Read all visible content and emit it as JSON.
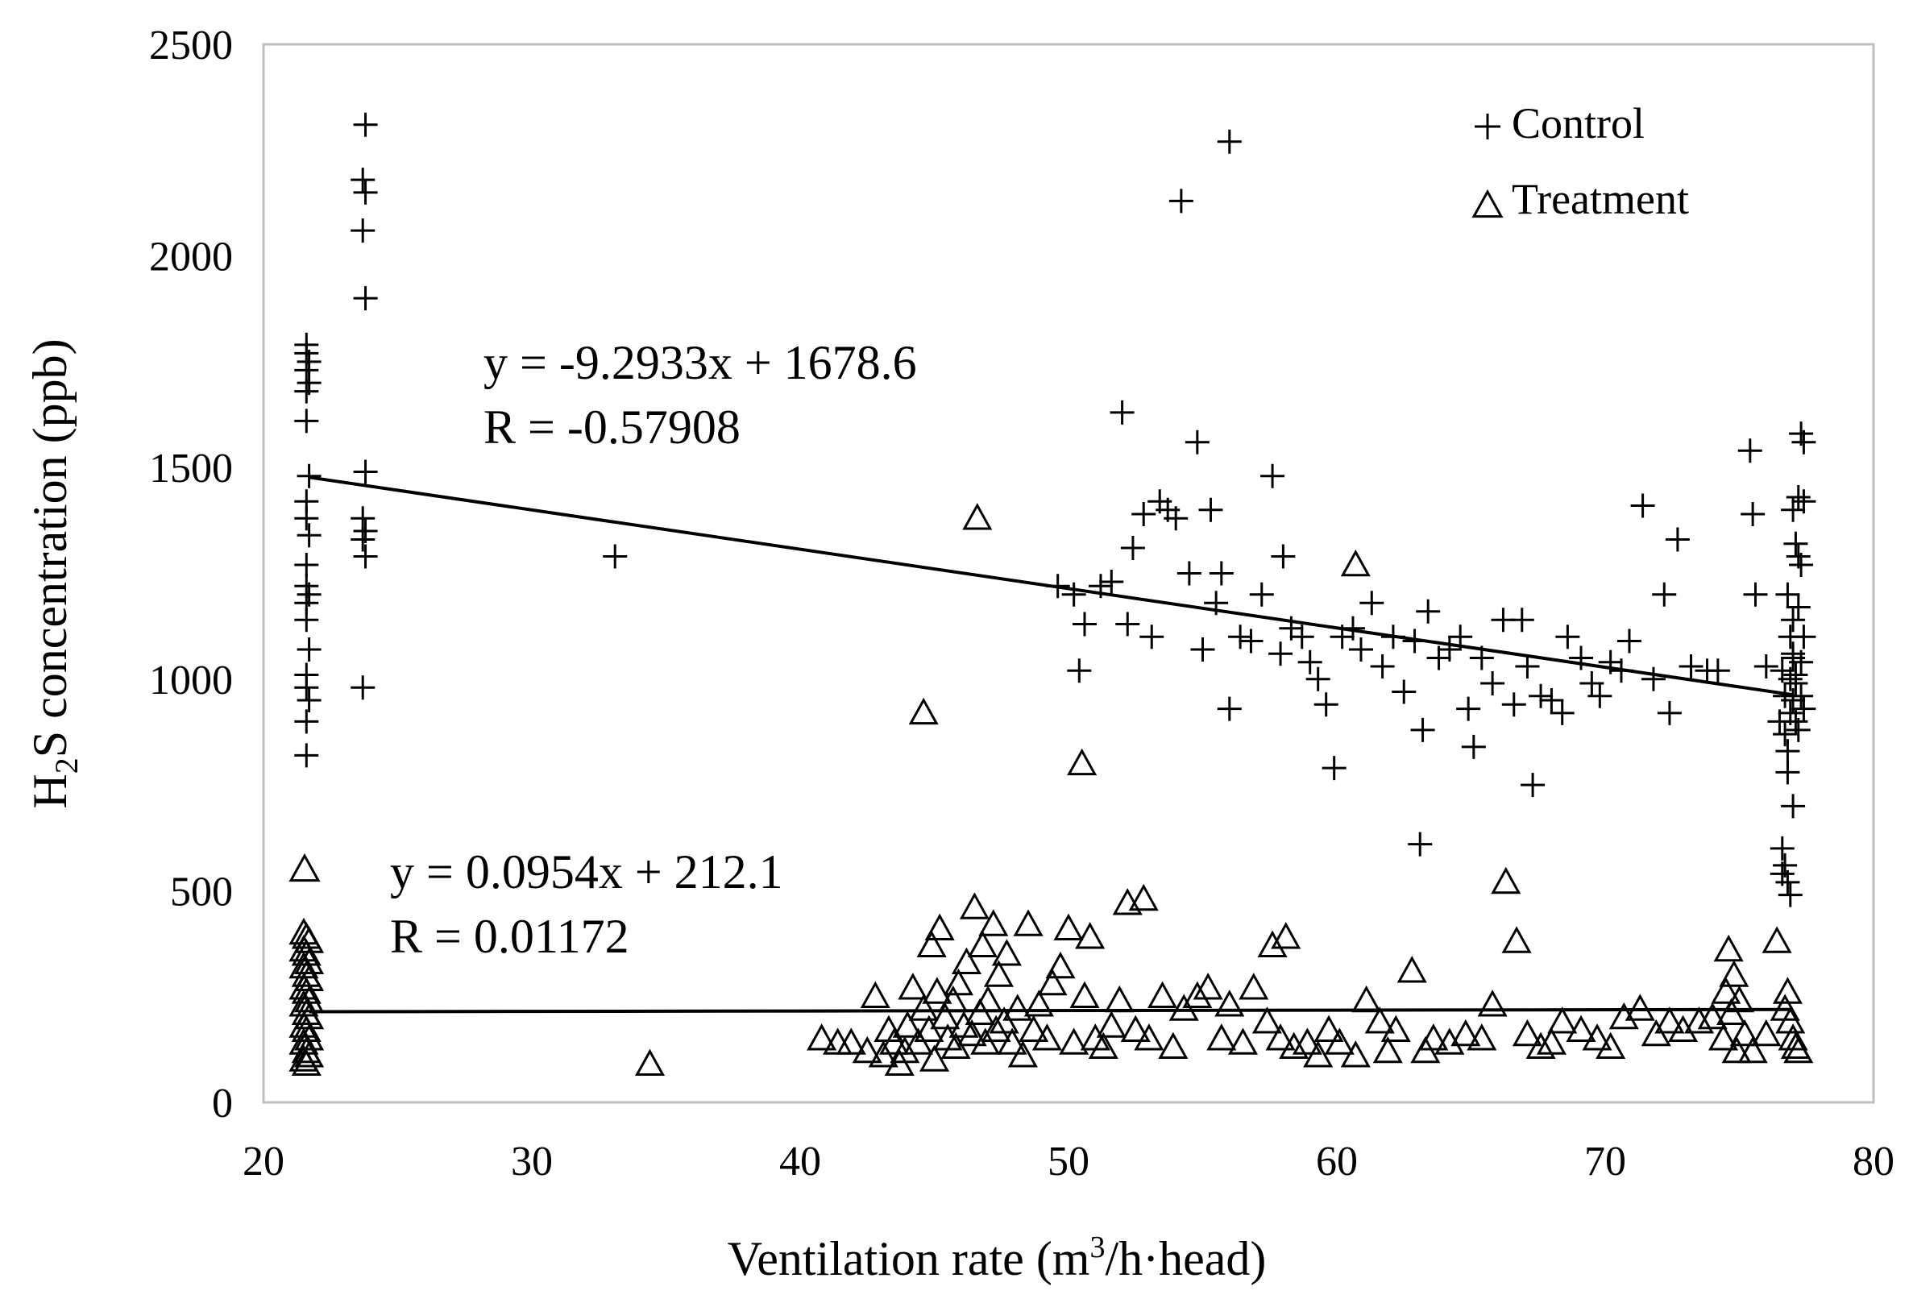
{
  "chart_data": {
    "type": "scatter",
    "title": "",
    "xlabel": {
      "pre": "Ventilation rate (m",
      "sup": "3",
      "post": "/h·head)"
    },
    "ylabel": {
      "pre": "H",
      "sub": "2",
      "post": "S concentration (ppb)"
    },
    "xlim": [
      20,
      80
    ],
    "ylim": [
      0,
      2500
    ],
    "xticks": [
      20,
      30,
      40,
      50,
      60,
      70,
      80
    ],
    "yticks": [
      0,
      500,
      1000,
      1500,
      2000,
      2500
    ],
    "grid": false,
    "legend_position": "top-right",
    "series": [
      {
        "name": "Control",
        "marker": "plus",
        "trend": {
          "slope": -9.2933,
          "intercept": 1678.6,
          "x_range": [
            21.7,
            77.0
          ]
        },
        "equation": "y = -9.2933x + 1678.6",
        "r_text": "R = -0.57908",
        "points": [
          [
            21.6,
            1790
          ],
          [
            21.6,
            1770
          ],
          [
            21.7,
            1750
          ],
          [
            21.6,
            1730
          ],
          [
            21.7,
            1700
          ],
          [
            21.6,
            1680
          ],
          [
            21.6,
            1610
          ],
          [
            21.7,
            1480
          ],
          [
            21.6,
            1420
          ],
          [
            21.6,
            1380
          ],
          [
            21.7,
            1340
          ],
          [
            21.6,
            1270
          ],
          [
            21.6,
            1220
          ],
          [
            21.7,
            1200
          ],
          [
            21.6,
            1180
          ],
          [
            21.6,
            1140
          ],
          [
            21.7,
            1070
          ],
          [
            21.6,
            1010
          ],
          [
            21.6,
            980
          ],
          [
            21.7,
            950
          ],
          [
            21.6,
            900
          ],
          [
            21.6,
            820
          ],
          [
            23.8,
            2310
          ],
          [
            23.7,
            2180
          ],
          [
            23.8,
            2150
          ],
          [
            23.7,
            2060
          ],
          [
            23.8,
            1900
          ],
          [
            23.8,
            1490
          ],
          [
            23.7,
            1380
          ],
          [
            23.8,
            1350
          ],
          [
            23.7,
            1330
          ],
          [
            23.8,
            1290
          ],
          [
            23.7,
            980
          ],
          [
            33.1,
            1290
          ],
          [
            49.6,
            1220
          ],
          [
            50.2,
            1200
          ],
          [
            50.4,
            1020
          ],
          [
            50.6,
            1130
          ],
          [
            51.2,
            1220
          ],
          [
            51.6,
            1230
          ],
          [
            52.0,
            1630
          ],
          [
            52.2,
            1130
          ],
          [
            52.4,
            1310
          ],
          [
            52.8,
            1390
          ],
          [
            53.1,
            1100
          ],
          [
            53.4,
            1420
          ],
          [
            53.7,
            1400
          ],
          [
            54.0,
            1380
          ],
          [
            54.2,
            2130
          ],
          [
            54.5,
            1250
          ],
          [
            54.8,
            1560
          ],
          [
            55.0,
            1070
          ],
          [
            55.3,
            1400
          ],
          [
            55.5,
            1180
          ],
          [
            55.7,
            1250
          ],
          [
            56.0,
            2270
          ],
          [
            56.0,
            930
          ],
          [
            56.4,
            1100
          ],
          [
            56.8,
            1090
          ],
          [
            57.2,
            1200
          ],
          [
            57.6,
            1480
          ],
          [
            57.9,
            1060
          ],
          [
            58.0,
            1290
          ],
          [
            58.3,
            1120
          ],
          [
            58.7,
            1100
          ],
          [
            59.0,
            1040
          ],
          [
            59.3,
            1000
          ],
          [
            59.6,
            940
          ],
          [
            59.9,
            790
          ],
          [
            60.2,
            1100
          ],
          [
            60.6,
            1120
          ],
          [
            60.9,
            1070
          ],
          [
            61.3,
            1180
          ],
          [
            61.7,
            1030
          ],
          [
            62.1,
            1100
          ],
          [
            62.5,
            970
          ],
          [
            62.9,
            1090
          ],
          [
            63.1,
            610
          ],
          [
            63.2,
            880
          ],
          [
            63.4,
            1160
          ],
          [
            63.8,
            1050
          ],
          [
            64.2,
            1070
          ],
          [
            64.6,
            1100
          ],
          [
            64.9,
            930
          ],
          [
            65.1,
            840
          ],
          [
            65.4,
            1050
          ],
          [
            65.8,
            990
          ],
          [
            66.2,
            1140
          ],
          [
            66.6,
            940
          ],
          [
            66.9,
            1140
          ],
          [
            67.1,
            1030
          ],
          [
            67.3,
            750
          ],
          [
            67.6,
            960
          ],
          [
            68.0,
            950
          ],
          [
            68.4,
            920
          ],
          [
            68.6,
            1100
          ],
          [
            69.1,
            1050
          ],
          [
            69.5,
            990
          ],
          [
            69.8,
            960
          ],
          [
            70.2,
            1040
          ],
          [
            70.6,
            1020
          ],
          [
            70.9,
            1090
          ],
          [
            71.4,
            1410
          ],
          [
            71.8,
            1000
          ],
          [
            72.2,
            1200
          ],
          [
            72.4,
            920
          ],
          [
            72.7,
            1330
          ],
          [
            73.2,
            1030
          ],
          [
            73.8,
            1020
          ],
          [
            74.2,
            1020
          ],
          [
            75.4,
            1540
          ],
          [
            75.5,
            1390
          ],
          [
            75.6,
            1200
          ],
          [
            76.0,
            1030
          ],
          [
            76.5,
            900
          ],
          [
            76.6,
            1020
          ],
          [
            76.7,
            870
          ],
          [
            76.8,
            1200
          ],
          [
            76.6,
            600
          ],
          [
            76.7,
            560
          ],
          [
            76.8,
            520
          ],
          [
            76.9,
            490
          ],
          [
            76.6,
            540
          ],
          [
            76.8,
            830
          ],
          [
            76.7,
            960
          ],
          [
            76.9,
            1100
          ],
          [
            77.0,
            1050
          ],
          [
            76.8,
            780
          ],
          [
            76.9,
            920
          ],
          [
            77.0,
            700
          ],
          [
            77.1,
            1010
          ],
          [
            77.0,
            1400
          ],
          [
            77.1,
            1320
          ],
          [
            77.2,
            1290
          ],
          [
            77.0,
            1140
          ],
          [
            77.1,
            990
          ],
          [
            77.2,
            880
          ],
          [
            77.3,
            960
          ],
          [
            77.0,
            1060
          ],
          [
            77.3,
            1580
          ],
          [
            77.4,
            1560
          ],
          [
            77.2,
            1430
          ],
          [
            77.4,
            1420
          ],
          [
            77.3,
            1270
          ],
          [
            77.2,
            1170
          ],
          [
            77.4,
            1100
          ],
          [
            77.3,
            1040
          ],
          [
            77.4,
            930
          ],
          [
            76.9,
            1000
          ],
          [
            77.0,
            950
          ],
          [
            77.1,
            900
          ]
        ]
      },
      {
        "name": "Treatment",
        "marker": "triangle",
        "trend": {
          "slope": 0.0954,
          "intercept": 212.1,
          "x_range": [
            21.7,
            77.0
          ]
        },
        "equation": "y = 0.0954x + 212.1",
        "r_text": "R = 0.01172",
        "points": [
          [
            21.5,
            400
          ],
          [
            21.6,
            390
          ],
          [
            21.7,
            380
          ],
          [
            21.5,
            360
          ],
          [
            21.6,
            350
          ],
          [
            21.7,
            330
          ],
          [
            21.5,
            320
          ],
          [
            21.6,
            300
          ],
          [
            21.7,
            290
          ],
          [
            21.5,
            270
          ],
          [
            21.6,
            260
          ],
          [
            21.7,
            240
          ],
          [
            21.5,
            230
          ],
          [
            21.6,
            210
          ],
          [
            21.7,
            200
          ],
          [
            21.5,
            180
          ],
          [
            21.6,
            170
          ],
          [
            21.7,
            150
          ],
          [
            21.5,
            140
          ],
          [
            21.6,
            120
          ],
          [
            21.7,
            110
          ],
          [
            21.5,
            100
          ],
          [
            21.6,
            90
          ],
          [
            34.4,
            90
          ],
          [
            40.8,
            150
          ],
          [
            41.4,
            140
          ],
          [
            41.9,
            140
          ],
          [
            42.5,
            120
          ],
          [
            42.8,
            250
          ],
          [
            43.1,
            110
          ],
          [
            43.3,
            170
          ],
          [
            43.5,
            140
          ],
          [
            43.7,
            90
          ],
          [
            43.9,
            120
          ],
          [
            44.0,
            180
          ],
          [
            44.2,
            270
          ],
          [
            44.4,
            140
          ],
          [
            44.6,
            920
          ],
          [
            44.6,
            220
          ],
          [
            44.8,
            170
          ],
          [
            44.9,
            370
          ],
          [
            45.0,
            100
          ],
          [
            45.1,
            260
          ],
          [
            45.2,
            410
          ],
          [
            45.4,
            200
          ],
          [
            45.5,
            150
          ],
          [
            45.7,
            240
          ],
          [
            45.8,
            130
          ],
          [
            45.9,
            280
          ],
          [
            46.1,
            180
          ],
          [
            46.2,
            330
          ],
          [
            46.4,
            160
          ],
          [
            46.5,
            460
          ],
          [
            46.6,
            1380
          ],
          [
            46.7,
            210
          ],
          [
            46.8,
            370
          ],
          [
            46.9,
            140
          ],
          [
            47.0,
            240
          ],
          [
            47.2,
            420
          ],
          [
            47.3,
            170
          ],
          [
            47.4,
            300
          ],
          [
            47.6,
            190
          ],
          [
            47.7,
            350
          ],
          [
            47.9,
            140
          ],
          [
            48.1,
            220
          ],
          [
            48.3,
            110
          ],
          [
            48.5,
            420
          ],
          [
            48.7,
            170
          ],
          [
            48.9,
            230
          ],
          [
            49.2,
            150
          ],
          [
            49.4,
            280
          ],
          [
            49.7,
            320
          ],
          [
            50.0,
            410
          ],
          [
            50.2,
            140
          ],
          [
            50.5,
            800
          ],
          [
            50.6,
            250
          ],
          [
            50.8,
            390
          ],
          [
            51.0,
            150
          ],
          [
            51.3,
            130
          ],
          [
            51.6,
            180
          ],
          [
            51.9,
            240
          ],
          [
            52.2,
            470
          ],
          [
            52.5,
            170
          ],
          [
            52.8,
            480
          ],
          [
            53.0,
            150
          ],
          [
            53.5,
            250
          ],
          [
            53.9,
            130
          ],
          [
            54.3,
            220
          ],
          [
            54.8,
            250
          ],
          [
            55.2,
            270
          ],
          [
            55.7,
            150
          ],
          [
            56.0,
            230
          ],
          [
            56.5,
            140
          ],
          [
            56.9,
            270
          ],
          [
            57.4,
            190
          ],
          [
            57.6,
            370
          ],
          [
            57.9,
            150
          ],
          [
            58.1,
            390
          ],
          [
            58.4,
            130
          ],
          [
            58.9,
            140
          ],
          [
            59.3,
            110
          ],
          [
            59.7,
            170
          ],
          [
            60.1,
            140
          ],
          [
            60.7,
            1270
          ],
          [
            60.7,
            110
          ],
          [
            61.1,
            240
          ],
          [
            61.6,
            190
          ],
          [
            61.9,
            120
          ],
          [
            62.2,
            170
          ],
          [
            62.8,
            310
          ],
          [
            63.3,
            120
          ],
          [
            63.6,
            150
          ],
          [
            64.2,
            140
          ],
          [
            64.8,
            160
          ],
          [
            65.4,
            150
          ],
          [
            65.8,
            230
          ],
          [
            66.3,
            520
          ],
          [
            66.7,
            380
          ],
          [
            67.1,
            160
          ],
          [
            67.6,
            130
          ],
          [
            68.0,
            140
          ],
          [
            68.4,
            190
          ],
          [
            69.1,
            170
          ],
          [
            69.7,
            150
          ],
          [
            70.2,
            130
          ],
          [
            70.7,
            200
          ],
          [
            71.3,
            220
          ],
          [
            71.9,
            160
          ],
          [
            72.4,
            190
          ],
          [
            72.9,
            170
          ],
          [
            73.5,
            190
          ],
          [
            74.0,
            200
          ],
          [
            74.4,
            150
          ],
          [
            74.5,
            260
          ],
          [
            74.6,
            360
          ],
          [
            74.7,
            210
          ],
          [
            74.8,
            300
          ],
          [
            74.9,
            120
          ],
          [
            75.0,
            240
          ],
          [
            75.2,
            160
          ],
          [
            75.5,
            120
          ],
          [
            76.0,
            160
          ],
          [
            76.4,
            380
          ],
          [
            76.8,
            260
          ],
          [
            76.9,
            190
          ],
          [
            77.0,
            150
          ],
          [
            77.1,
            130
          ],
          [
            77.2,
            120
          ],
          [
            76.7,
            220
          ]
        ]
      }
    ]
  }
}
